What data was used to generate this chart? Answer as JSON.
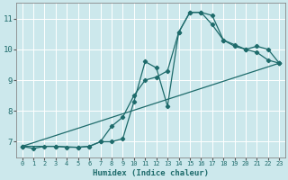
{
  "xlabel": "Humidex (Indice chaleur)",
  "bg_color": "#cce8ec",
  "line_color": "#1e6b6b",
  "grid_color": "#ffffff",
  "xlim": [
    -0.5,
    23.5
  ],
  "ylim": [
    6.5,
    11.5
  ],
  "yticks": [
    7,
    8,
    9,
    10,
    11
  ],
  "xticks": [
    0,
    1,
    2,
    3,
    4,
    5,
    6,
    7,
    8,
    9,
    10,
    11,
    12,
    13,
    14,
    15,
    16,
    17,
    18,
    19,
    20,
    21,
    22,
    23
  ],
  "line1_x": [
    0,
    1,
    2,
    3,
    4,
    5,
    6,
    7,
    8,
    9,
    10,
    11,
    12,
    13,
    14,
    15,
    16,
    17,
    18,
    19,
    20,
    21,
    22,
    23
  ],
  "line1_y": [
    6.85,
    6.78,
    6.85,
    6.85,
    6.82,
    6.82,
    6.85,
    7.0,
    7.0,
    7.1,
    8.3,
    9.6,
    9.4,
    8.15,
    10.55,
    11.2,
    11.2,
    11.1,
    10.3,
    10.1,
    10.0,
    9.9,
    9.65,
    9.55
  ],
  "line2_x": [
    0,
    3,
    5,
    6,
    7,
    8,
    9,
    10,
    11,
    12,
    13,
    14,
    15,
    16,
    17,
    18,
    19,
    20,
    21,
    22,
    23
  ],
  "line2_y": [
    6.85,
    6.85,
    6.82,
    6.85,
    7.0,
    7.5,
    7.8,
    8.5,
    9.0,
    9.1,
    9.3,
    10.55,
    11.2,
    11.2,
    10.8,
    10.3,
    10.15,
    10.0,
    10.1,
    10.0,
    9.55
  ],
  "line3_x": [
    0,
    23
  ],
  "line3_y": [
    6.85,
    9.55
  ]
}
